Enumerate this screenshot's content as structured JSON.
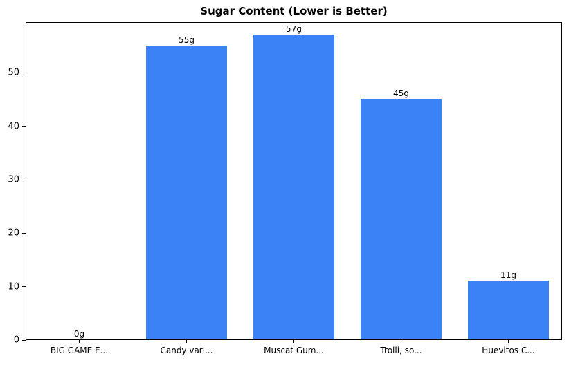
{
  "chart_data": {
    "type": "bar",
    "title": "Sugar Content (Lower is Better)",
    "categories": [
      "BIG GAME E...",
      "Candy vari...",
      "Muscat Gum...",
      "Trolli, so...",
      "Huevitos C..."
    ],
    "values": [
      0,
      55,
      57,
      45,
      11
    ],
    "value_labels": [
      "0g",
      "55g",
      "57g",
      "45g",
      "11g"
    ],
    "xlabel": "",
    "ylabel": "",
    "ylim": [
      0,
      59.5
    ],
    "yticks": [
      0,
      10,
      20,
      30,
      40,
      50
    ],
    "bar_color": "#3b82f6",
    "axis_color": "#000000",
    "text_color": "#000000",
    "background_color": "#ffffff",
    "grid": false,
    "legend": "none"
  }
}
